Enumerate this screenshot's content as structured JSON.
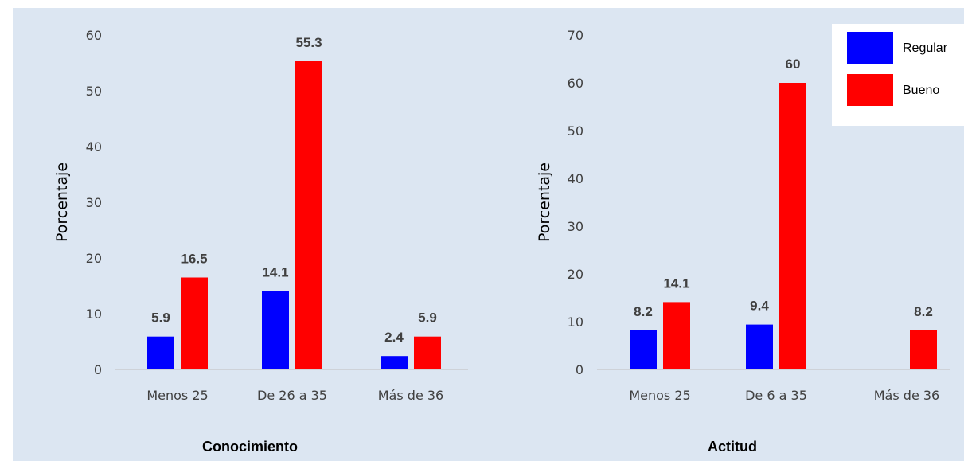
{
  "colors": {
    "regular": "#0000ff",
    "bueno": "#ff0000",
    "background": "#dce6f2",
    "axis": "#bfbfbf"
  },
  "legend": {
    "items": [
      "Regular",
      "Bueno"
    ]
  },
  "chart_data": [
    {
      "type": "bar",
      "title": "Conocimiento",
      "xlabel": "",
      "ylabel": "Porcentaje",
      "categories": [
        "Menos 25",
        "De 26 a 35",
        "Más de 36"
      ],
      "ylim": [
        0,
        60
      ],
      "yticks": [
        0,
        10,
        20,
        30,
        40,
        50,
        60
      ],
      "grid": false,
      "series": [
        {
          "name": "Regular",
          "values": [
            5.9,
            14.1,
            2.4
          ],
          "labels": [
            "5.9",
            "14.1",
            "2.4"
          ]
        },
        {
          "name": "Bueno",
          "values": [
            16.5,
            55.3,
            5.9
          ],
          "labels": [
            "16.5",
            "55.3",
            "5.9"
          ]
        }
      ]
    },
    {
      "type": "bar",
      "title": "Actitud",
      "xlabel": "",
      "ylabel": "Porcentaje",
      "categories": [
        "Menos 25",
        "De 6 a 35",
        "Más de 36"
      ],
      "ylim": [
        0,
        70
      ],
      "yticks": [
        0,
        10,
        20,
        30,
        40,
        50,
        60,
        70
      ],
      "grid": false,
      "legend_position": "top-right",
      "series": [
        {
          "name": "Regular",
          "values": [
            8.2,
            9.4,
            null
          ],
          "labels": [
            "8.2",
            "9.4",
            ""
          ]
        },
        {
          "name": "Bueno",
          "values": [
            14.1,
            60,
            8.2
          ],
          "labels": [
            "14.1",
            "60",
            "8.2"
          ]
        }
      ]
    }
  ]
}
